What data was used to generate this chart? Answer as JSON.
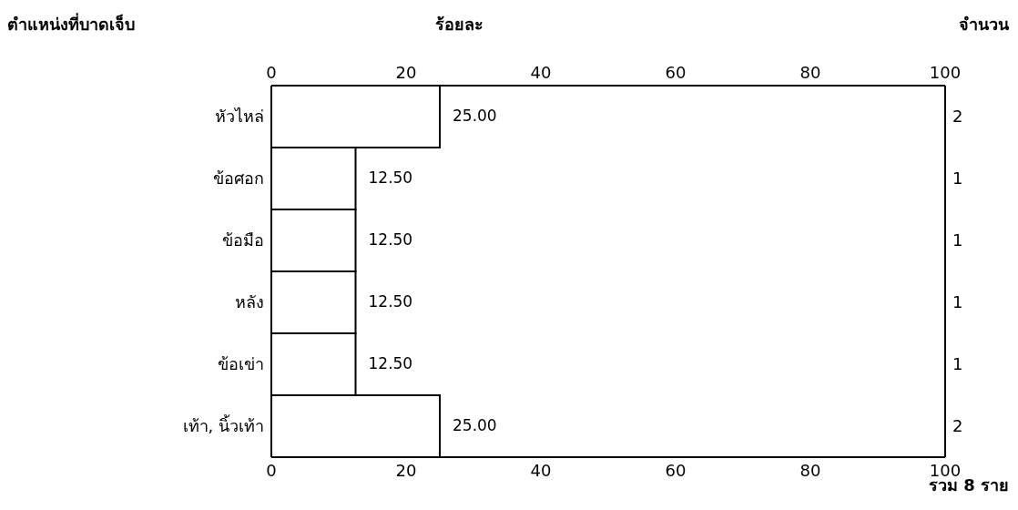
{
  "chart_data": {
    "type": "bar",
    "orientation": "horizontal",
    "xlabel": "ร้อยละ",
    "ylabel": "ตำแหน่งที่บาดเจ็บ",
    "y2label": "จำนวน",
    "categories": [
      "หัวไหล่",
      "ข้อศอก",
      "ข้อมือ",
      "หลัง",
      "ข้อเข่า",
      "เท้า, นิ้วเท้า"
    ],
    "values": [
      25,
      12.5,
      12.5,
      12.5,
      12.5,
      25
    ],
    "value_labels": [
      "25.00",
      "12.50",
      "12.50",
      "12.50",
      "12.50",
      "25.00"
    ],
    "color": "#ffffff",
    "xlim": [
      0,
      100
    ],
    "xticks": [
      0,
      20,
      40,
      60,
      80,
      100
    ],
    "x2lim": [
      0,
      100
    ],
    "x2ticks": [
      0,
      20,
      40,
      60,
      80,
      100
    ],
    "grid": false,
    "legend": false,
    "annotations": [
      "2",
      "1",
      "1",
      "1",
      "1",
      "2",
      "รวม 8 ราย"
    ]
  }
}
